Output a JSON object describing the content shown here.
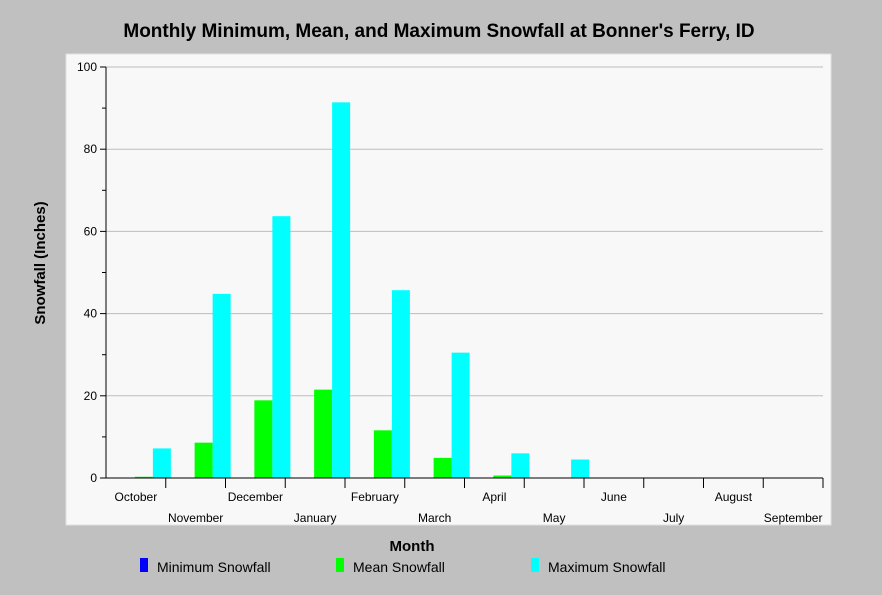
{
  "chart_data": {
    "type": "bar",
    "title": "Monthly Minimum, Mean, and Maximum Snowfall at Bonner's Ferry, ID",
    "xlabel": "Month",
    "ylabel": "Snowfall (Inches)",
    "ylim": [
      0,
      100
    ],
    "yticks": [
      0,
      20,
      40,
      60,
      80,
      100
    ],
    "grid": true,
    "legend_position": "bottom",
    "categories": [
      "October",
      "November",
      "December",
      "January",
      "February",
      "March",
      "April",
      "May",
      "June",
      "July",
      "August",
      "September"
    ],
    "series": [
      {
        "name": "Minimum Snowfall",
        "color": "#0000ff",
        "values": [
          0,
          0,
          0,
          0,
          0,
          0,
          0,
          0,
          0,
          0,
          0,
          0
        ]
      },
      {
        "name": "Mean Snowfall",
        "color": "#00ff00",
        "values": [
          0.3,
          8.6,
          18.9,
          21.5,
          11.6,
          4.9,
          0.6,
          0,
          0,
          0,
          0,
          0
        ]
      },
      {
        "name": "Maximum Snowfall",
        "color": "#00ffff",
        "values": [
          7.2,
          44.8,
          63.7,
          91.4,
          45.7,
          30.5,
          6.0,
          4.5,
          0,
          0,
          0,
          0
        ]
      }
    ]
  }
}
